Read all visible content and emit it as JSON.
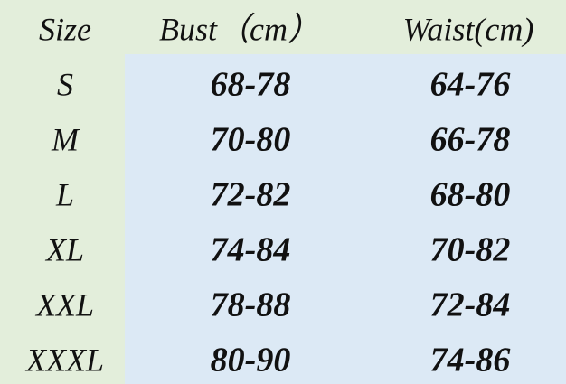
{
  "table": {
    "header": [
      "Size",
      "Bust（cm）",
      "Waist(cm)"
    ],
    "rows": [
      [
        "S",
        "68-78",
        "64-76"
      ],
      [
        "M",
        "70-80",
        "66-78"
      ],
      [
        "L",
        "72-82",
        "68-80"
      ],
      [
        "XL",
        "74-84",
        "70-82"
      ],
      [
        "XXL",
        "78-88",
        "72-84"
      ],
      [
        "XXXL",
        "80-90",
        "74-86"
      ]
    ]
  }
}
